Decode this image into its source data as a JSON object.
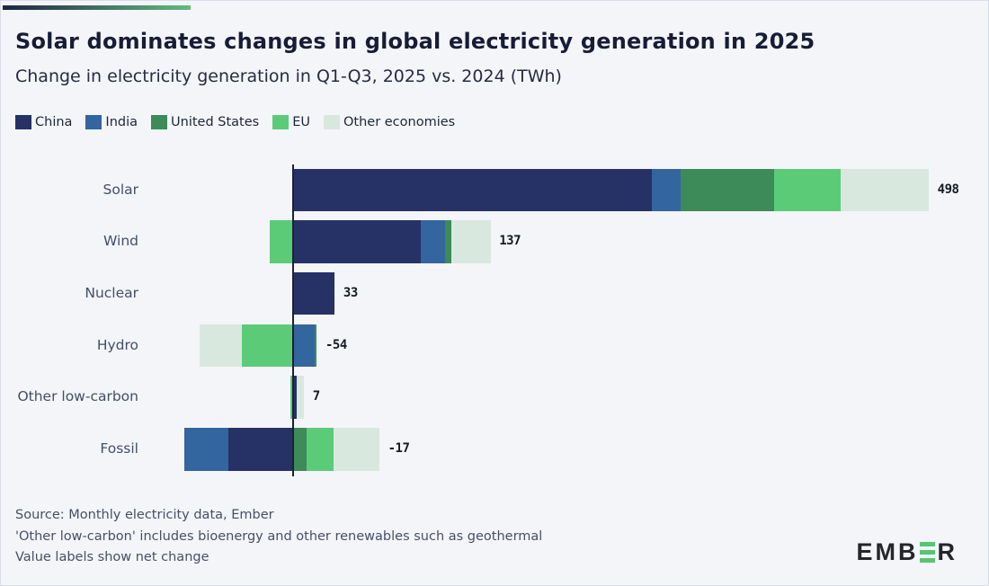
{
  "header": {
    "title": "Solar dominates changes in global electricity generation in 2025",
    "subtitle": "Change in electricity generation in Q1-Q3, 2025 vs. 2024 (TWh)"
  },
  "chart_data": {
    "type": "bar",
    "orientation": "horizontal",
    "stacked": true,
    "unit": "TWh",
    "title": "Solar dominates changes in global electricity generation in 2025",
    "subtitle": "Change in electricity generation in Q1-Q3, 2025 vs. 2024 (TWh)",
    "legend_position": "top",
    "zero_baseline": true,
    "categories": [
      "Solar",
      "Wind",
      "Nuclear",
      "Hydro",
      "Other low-carbon",
      "Fossil"
    ],
    "series": [
      {
        "name": "China",
        "color": "#263166",
        "values": [
          281,
          100,
          33,
          0,
          3,
          -50
        ]
      },
      {
        "name": "India",
        "color": "#33659e",
        "values": [
          23,
          19,
          0,
          17,
          0,
          -35
        ]
      },
      {
        "name": "United States",
        "color": "#3d8b58",
        "values": [
          73,
          5,
          0,
          2,
          0,
          11
        ]
      },
      {
        "name": "EU",
        "color": "#5ccb78",
        "values": [
          52,
          -18,
          0,
          -40,
          -2,
          21
        ]
      },
      {
        "name": "Other economies",
        "color": "#d9e8de",
        "values": [
          69,
          31,
          0,
          -33,
          6,
          36
        ]
      }
    ],
    "net_values": [
      498,
      137,
      33,
      -54,
      7,
      -17
    ],
    "net_labels": [
      "498",
      "137",
      "33",
      "-54",
      "7",
      "-17"
    ]
  },
  "footer": {
    "lines": [
      "Source: Monthly electricity data, Ember",
      "'Other low-carbon' includes bioenergy and other renewables such as geothermal",
      "Value labels show net change"
    ]
  },
  "logo": {
    "prefix": "EMB",
    "suffix": "R",
    "bar_color": "#55c673"
  },
  "colors": {
    "background": "#f3f5f9",
    "accent_gradient_start": "#1b2444",
    "accent_gradient_end": "#63bc7d",
    "axis_line": "#1b2235",
    "title_text": "#171d36",
    "category_text": "#434e66",
    "footer_text": "#474f66"
  }
}
